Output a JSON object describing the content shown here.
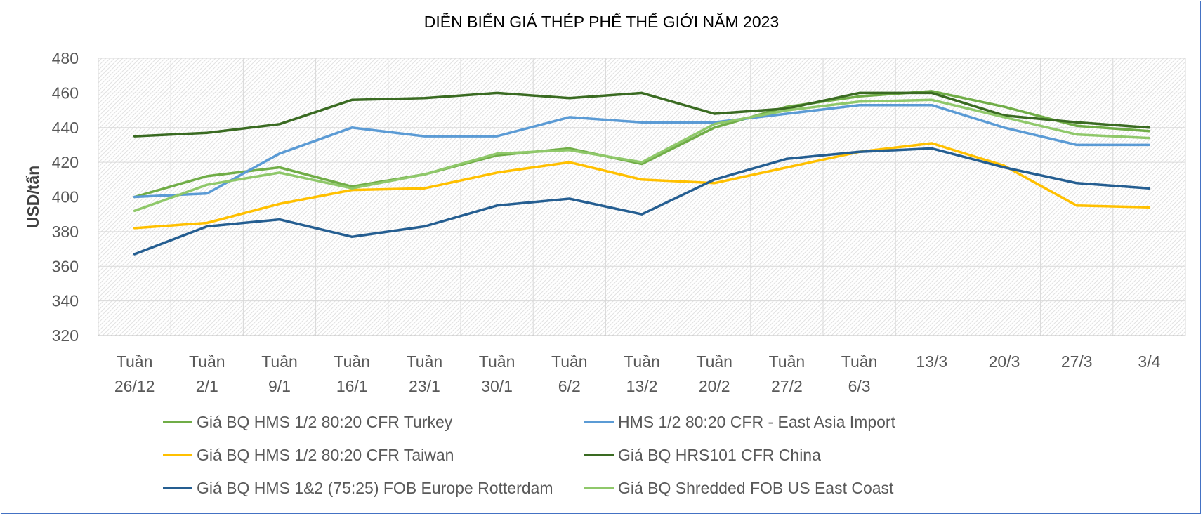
{
  "chart_data": {
    "type": "line",
    "title": "DIỄN BIẾN GIÁ THÉP PHẾ THẾ GIỚI NĂM 2023",
    "ylabel": "USD/tấn",
    "xlabel": "",
    "ylim": [
      320,
      480
    ],
    "yticks": [
      320,
      340,
      360,
      380,
      400,
      420,
      440,
      460,
      480
    ],
    "grid": true,
    "legend_position": "bottom",
    "categories": [
      [
        "Tuần",
        "26/12"
      ],
      [
        "Tuần",
        "2/1"
      ],
      [
        "Tuần",
        "9/1"
      ],
      [
        "Tuần",
        "16/1"
      ],
      [
        "Tuần",
        "23/1"
      ],
      [
        "Tuần",
        "30/1"
      ],
      [
        "Tuần",
        "6/2"
      ],
      [
        "Tuần",
        "13/2"
      ],
      [
        "Tuần",
        "20/2"
      ],
      [
        "Tuần",
        "27/2"
      ],
      [
        "Tuần",
        "6/3"
      ],
      [
        "13/3"
      ],
      [
        "20/3"
      ],
      [
        "27/3"
      ],
      [
        "3/4"
      ]
    ],
    "series": [
      {
        "name": "Giá BQ HMS 1/2 80:20 CFR Turkey",
        "color": "#70ad47",
        "values": [
          400,
          412,
          417,
          406,
          413,
          424,
          428,
          419,
          440,
          452,
          458,
          461,
          452,
          441,
          438
        ]
      },
      {
        "name": "HMS 1/2 80:20 CFR - East Asia Import",
        "color": "#5b9bd5",
        "values": [
          400,
          402,
          425,
          440,
          435,
          435,
          446,
          443,
          443,
          448,
          453,
          453,
          440,
          430,
          430
        ]
      },
      {
        "name": "Giá BQ HMS 1/2 80:20 CFR Taiwan",
        "color": "#ffc000",
        "values": [
          382,
          385,
          396,
          404,
          405,
          414,
          420,
          410,
          408,
          417,
          426,
          431,
          418,
          395,
          394
        ]
      },
      {
        "name": "Giá BQ HRS101 CFR China",
        "color": "#3a6b22",
        "values": [
          435,
          437,
          442,
          456,
          457,
          460,
          457,
          460,
          448,
          451,
          460,
          460,
          447,
          443,
          440
        ]
      },
      {
        "name": "Giá BQ HMS 1&2 (75:25) FOB Europe Rotterdam",
        "color": "#255e91",
        "values": [
          367,
          383,
          387,
          377,
          383,
          395,
          399,
          390,
          410,
          422,
          426,
          428,
          417,
          408,
          405
        ]
      },
      {
        "name": "Giá BQ Shredded FOB US East Coast",
        "color": "#8fc86a",
        "values": [
          392,
          407,
          414,
          405,
          413,
          425,
          427,
          420,
          442,
          450,
          455,
          456,
          446,
          436,
          434
        ]
      }
    ]
  }
}
